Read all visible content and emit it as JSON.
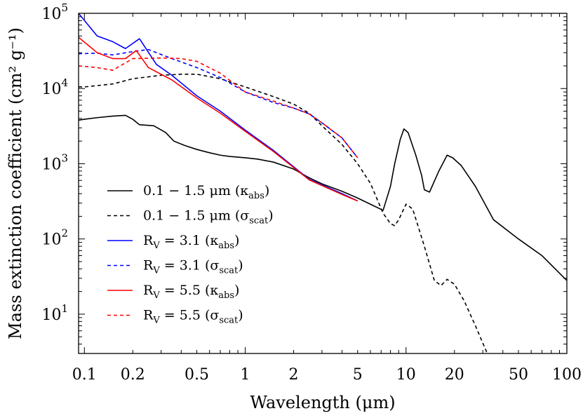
{
  "chart_data": {
    "type": "line",
    "xlabel": "Wavelength (μm)",
    "ylabel": "Mass extinction coefficient (cm² g⁻¹)",
    "xscale": "log",
    "yscale": "log",
    "xlim": [
      0.092,
      100
    ],
    "ylim": [
      3,
      100000
    ],
    "grid": false,
    "legend_position": "bottom-left",
    "x_ticks": [
      {
        "value": 0.1,
        "label": "0.1"
      },
      {
        "value": 0.2,
        "label": "0.2"
      },
      {
        "value": 0.5,
        "label": "0.5"
      },
      {
        "value": 1,
        "label": "1"
      },
      {
        "value": 2,
        "label": "2"
      },
      {
        "value": 5,
        "label": "5"
      },
      {
        "value": 10,
        "label": "10"
      },
      {
        "value": 20,
        "label": "20"
      },
      {
        "value": 50,
        "label": "50"
      },
      {
        "value": 100,
        "label": "100"
      }
    ],
    "y_ticks": [
      {
        "value": 10,
        "base": "10",
        "exp": "1"
      },
      {
        "value": 100,
        "base": "10",
        "exp": "2"
      },
      {
        "value": 1000,
        "base": "10",
        "exp": "3"
      },
      {
        "value": 10000,
        "base": "10",
        "exp": "4"
      },
      {
        "value": 100000,
        "base": "10",
        "exp": "5"
      }
    ],
    "series": [
      {
        "name": "0.1 – 1.5 μm (κabs)",
        "label_parts": {
          "main": "0.1 − 1.5 μm (κ",
          "sub": "abs",
          "end": ")"
        },
        "color": "#000000",
        "dash": "solid",
        "points": [
          [
            0.092,
            3800
          ],
          [
            0.1,
            3900
          ],
          [
            0.12,
            4100
          ],
          [
            0.15,
            4300
          ],
          [
            0.18,
            4400
          ],
          [
            0.2,
            3900
          ],
          [
            0.22,
            3300
          ],
          [
            0.27,
            3200
          ],
          [
            0.32,
            2600
          ],
          [
            0.36,
            2000
          ],
          [
            0.42,
            1750
          ],
          [
            0.5,
            1550
          ],
          [
            0.6,
            1400
          ],
          [
            0.7,
            1300
          ],
          [
            0.8,
            1250
          ],
          [
            1.0,
            1200
          ],
          [
            1.2,
            1150
          ],
          [
            1.5,
            1050
          ],
          [
            2.0,
            850
          ],
          [
            2.5,
            650
          ],
          [
            3.0,
            540
          ],
          [
            4.0,
            430
          ],
          [
            5.0,
            350
          ],
          [
            6.0,
            290
          ],
          [
            7.2,
            240
          ],
          [
            8.0,
            500
          ],
          [
            8.5,
            1000
          ],
          [
            9.2,
            2100
          ],
          [
            9.7,
            2900
          ],
          [
            10.3,
            2600
          ],
          [
            11.5,
            1300
          ],
          [
            12.5,
            700
          ],
          [
            13.0,
            450
          ],
          [
            14.0,
            420
          ],
          [
            16.0,
            800
          ],
          [
            18.0,
            1300
          ],
          [
            19.5,
            1200
          ],
          [
            22.0,
            950
          ],
          [
            27.0,
            500
          ],
          [
            35.0,
            180
          ],
          [
            50.0,
            100
          ],
          [
            70.0,
            60
          ],
          [
            100.0,
            28
          ]
        ]
      },
      {
        "name": "0.1 – 1.5 μm (σscat)",
        "label_parts": {
          "main": "0.1 − 1.5 μm (σ",
          "sub": "scat",
          "end": ")"
        },
        "color": "#000000",
        "dash": "dashed",
        "points": [
          [
            0.092,
            10500
          ],
          [
            0.1,
            10500
          ],
          [
            0.15,
            11500
          ],
          [
            0.2,
            13500
          ],
          [
            0.3,
            15000
          ],
          [
            0.4,
            15500
          ],
          [
            0.5,
            15500
          ],
          [
            0.7,
            13500
          ],
          [
            1.0,
            10500
          ],
          [
            1.5,
            7800
          ],
          [
            2.0,
            6200
          ],
          [
            2.5,
            4700
          ],
          [
            3.0,
            3200
          ],
          [
            4.0,
            1800
          ],
          [
            5.0,
            1000
          ],
          [
            6.0,
            550
          ],
          [
            7.2,
            220
          ],
          [
            8.0,
            160
          ],
          [
            8.5,
            150
          ],
          [
            9.0,
            180
          ],
          [
            10.0,
            290
          ],
          [
            11.0,
            250
          ],
          [
            13.0,
            80
          ],
          [
            15.0,
            28
          ],
          [
            16.5,
            24
          ],
          [
            18.0,
            29
          ],
          [
            20.0,
            25
          ],
          [
            23.0,
            15
          ],
          [
            27.0,
            7
          ],
          [
            32.0,
            3
          ]
        ]
      },
      {
        "name": "RV = 3.1 (κabs)",
        "label_parts": {
          "main": "R",
          "sub1": "V",
          "mid": " = 3.1 (κ",
          "sub": "abs",
          "end": ")"
        },
        "color": "#0000ff",
        "dash": "solid",
        "points": [
          [
            0.092,
            100000
          ],
          [
            0.12,
            50000
          ],
          [
            0.15,
            42000
          ],
          [
            0.18,
            34000
          ],
          [
            0.22,
            46000
          ],
          [
            0.28,
            21000
          ],
          [
            0.35,
            15000
          ],
          [
            0.5,
            8000
          ],
          [
            0.7,
            5000
          ],
          [
            1.0,
            2800
          ],
          [
            1.5,
            1500
          ],
          [
            2.5,
            620
          ],
          [
            4.0,
            400
          ],
          [
            5.0,
            320
          ]
        ]
      },
      {
        "name": "RV = 3.1 (σscat)",
        "label_parts": {
          "main": "R",
          "sub1": "V",
          "mid": " = 3.1 (σ",
          "sub": "scat",
          "end": ")"
        },
        "color": "#0000ff",
        "dash": "dashed",
        "points": [
          [
            0.092,
            29000
          ],
          [
            0.12,
            29500
          ],
          [
            0.15,
            28000
          ],
          [
            0.2,
            31000
          ],
          [
            0.25,
            33000
          ],
          [
            0.35,
            25000
          ],
          [
            0.5,
            19000
          ],
          [
            0.7,
            14000
          ],
          [
            1.0,
            9000
          ],
          [
            1.5,
            6500
          ],
          [
            2.0,
            5500
          ],
          [
            2.5,
            4600
          ],
          [
            3.0,
            3500
          ],
          [
            4.0,
            2200
          ],
          [
            5.0,
            1200
          ]
        ]
      },
      {
        "name": "RV = 5.5 (κabs)",
        "label_parts": {
          "main": "R",
          "sub1": "V",
          "mid": " = 5.5 (κ",
          "sub": "abs",
          "end": ")"
        },
        "color": "#ff0000",
        "dash": "solid",
        "points": [
          [
            0.092,
            48000
          ],
          [
            0.12,
            30000
          ],
          [
            0.15,
            25000
          ],
          [
            0.18,
            25000
          ],
          [
            0.21,
            32000
          ],
          [
            0.25,
            19000
          ],
          [
            0.35,
            13000
          ],
          [
            0.5,
            7500
          ],
          [
            0.7,
            4700
          ],
          [
            1.0,
            2700
          ],
          [
            1.5,
            1450
          ],
          [
            2.5,
            610
          ],
          [
            4.0,
            390
          ],
          [
            5.0,
            320
          ]
        ]
      },
      {
        "name": "RV = 5.5 (σscat)",
        "label_parts": {
          "main": "R",
          "sub1": "V",
          "mid": " = 5.5 (σ",
          "sub": "scat",
          "end": ")"
        },
        "color": "#ff0000",
        "dash": "dashed",
        "points": [
          [
            0.092,
            20000
          ],
          [
            0.12,
            19000
          ],
          [
            0.15,
            17500
          ],
          [
            0.2,
            25000
          ],
          [
            0.3,
            25500
          ],
          [
            0.4,
            25000
          ],
          [
            0.5,
            23000
          ],
          [
            0.7,
            16000
          ],
          [
            1.0,
            9000
          ],
          [
            1.5,
            6800
          ],
          [
            2.0,
            5500
          ],
          [
            2.5,
            4600
          ],
          [
            3.0,
            3500
          ],
          [
            4.0,
            2200
          ],
          [
            5.0,
            1200
          ]
        ]
      }
    ]
  }
}
